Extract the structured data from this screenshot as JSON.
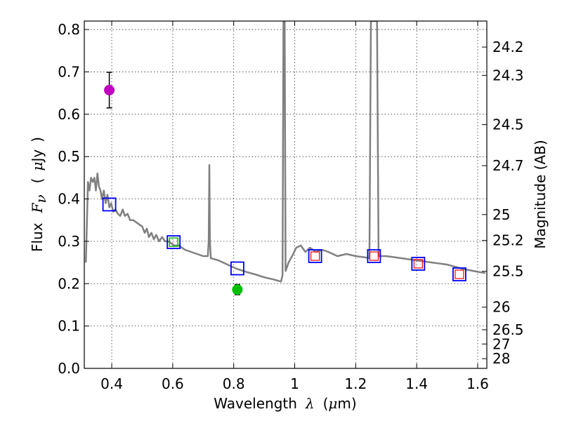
{
  "chart_data": {
    "type": "scatter",
    "xlabel": "Wavelength",
    "xlabel_symbol": "λ",
    "xlabel_unit_open": "(",
    "xlabel_unit_mu": "μ",
    "xlabel_unit_rest": "m)",
    "ylabel": "Flux",
    "ylabel_symbol": "F",
    "ylabel_subscript": "ν",
    "ylabel_unit_open": "(",
    "ylabel_unit_mu": "μ",
    "ylabel_unit_rest": "Jy",
    "ylabel_unit_close": ")",
    "ylabel_right": "Magnitude (AB)",
    "xlim": [
      0.31,
      1.63
    ],
    "ylim": [
      0.0,
      0.82
    ],
    "xticks": [
      0.4,
      0.6,
      0.8,
      1.0,
      1.2,
      1.4,
      1.6
    ],
    "xtick_labels": [
      "0.4",
      "0.6",
      "0.8",
      "1",
      "1.2",
      "1.4",
      "1.6"
    ],
    "yticks": [
      0.0,
      0.1,
      0.2,
      0.3,
      0.4,
      0.5,
      0.6,
      0.7,
      0.8
    ],
    "ytick_labels": [
      "0.0",
      "0.1",
      "0.2",
      "0.3",
      "0.4",
      "0.5",
      "0.6",
      "0.7",
      "0.8"
    ],
    "mag_ticks": [
      24.2,
      24.3,
      24.5,
      24.7,
      25,
      25.2,
      25.5,
      26,
      26.5,
      27,
      28
    ],
    "mag_tick_labels": [
      "24.2",
      "24.3",
      "24.5",
      "24.7",
      "25",
      "25.2",
      "25.5",
      "26",
      "26.5",
      "27",
      "28"
    ],
    "grid": true,
    "model_color": "#808080",
    "model_spectrum": [
      [
        0.315,
        0.25
      ],
      [
        0.318,
        0.33
      ],
      [
        0.322,
        0.44
      ],
      [
        0.327,
        0.42
      ],
      [
        0.332,
        0.45
      ],
      [
        0.338,
        0.44
      ],
      [
        0.343,
        0.45
      ],
      [
        0.348,
        0.42
      ],
      [
        0.353,
        0.46
      ],
      [
        0.358,
        0.43
      ],
      [
        0.363,
        0.42
      ],
      [
        0.368,
        0.4
      ],
      [
        0.374,
        0.42
      ],
      [
        0.38,
        0.39
      ],
      [
        0.386,
        0.41
      ],
      [
        0.392,
        0.38
      ],
      [
        0.398,
        0.39
      ],
      [
        0.405,
        0.37
      ],
      [
        0.412,
        0.375
      ],
      [
        0.42,
        0.365
      ],
      [
        0.428,
        0.36
      ],
      [
        0.436,
        0.375
      ],
      [
        0.443,
        0.36
      ],
      [
        0.452,
        0.365
      ],
      [
        0.46,
        0.35
      ],
      [
        0.47,
        0.35
      ],
      [
        0.48,
        0.345
      ],
      [
        0.49,
        0.34
      ],
      [
        0.5,
        0.335
      ],
      [
        0.508,
        0.32
      ],
      [
        0.515,
        0.33
      ],
      [
        0.522,
        0.31
      ],
      [
        0.53,
        0.32
      ],
      [
        0.538,
        0.305
      ],
      [
        0.546,
        0.315
      ],
      [
        0.555,
        0.3
      ],
      [
        0.565,
        0.31
      ],
      [
        0.575,
        0.3
      ],
      [
        0.585,
        0.3
      ],
      [
        0.595,
        0.295
      ],
      [
        0.605,
        0.29
      ],
      [
        0.62,
        0.29
      ],
      [
        0.64,
        0.28
      ],
      [
        0.66,
        0.275
      ],
      [
        0.68,
        0.27
      ],
      [
        0.7,
        0.265
      ],
      [
        0.715,
        0.265
      ],
      [
        0.718,
        0.3
      ],
      [
        0.72,
        0.48
      ],
      [
        0.722,
        0.3
      ],
      [
        0.725,
        0.26
      ],
      [
        0.75,
        0.255
      ],
      [
        0.78,
        0.245
      ],
      [
        0.81,
        0.235
      ],
      [
        0.84,
        0.228
      ],
      [
        0.87,
        0.222
      ],
      [
        0.9,
        0.215
      ],
      [
        0.93,
        0.21
      ],
      [
        0.955,
        0.205
      ],
      [
        0.96,
        0.22
      ],
      [
        0.963,
        0.82
      ],
      [
        0.967,
        0.82
      ],
      [
        0.97,
        0.23
      ],
      [
        0.98,
        0.25
      ],
      [
        0.995,
        0.27
      ],
      [
        1.005,
        0.285
      ],
      [
        1.02,
        0.29
      ],
      [
        1.035,
        0.275
      ],
      [
        1.05,
        0.285
      ],
      [
        1.07,
        0.275
      ],
      [
        1.09,
        0.28
      ],
      [
        1.11,
        0.275
      ],
      [
        1.14,
        0.265
      ],
      [
        1.17,
        0.27
      ],
      [
        1.2,
        0.265
      ],
      [
        1.23,
        0.262
      ],
      [
        1.245,
        0.26
      ],
      [
        1.25,
        0.82
      ],
      [
        1.262,
        0.82
      ],
      [
        1.27,
        0.82
      ],
      [
        1.275,
        0.265
      ],
      [
        1.3,
        0.265
      ],
      [
        1.35,
        0.26
      ],
      [
        1.4,
        0.255
      ],
      [
        1.45,
        0.25
      ],
      [
        1.5,
        0.245
      ],
      [
        1.55,
        0.235
      ],
      [
        1.6,
        0.228
      ],
      [
        1.625,
        0.225
      ]
    ],
    "model_photometry": [
      {
        "x": 0.392,
        "y": 0.387,
        "inner": "none"
      },
      {
        "x": 0.603,
        "y": 0.298,
        "inner": "green"
      },
      {
        "x": 0.812,
        "y": 0.236,
        "inner": "none"
      },
      {
        "x": 1.067,
        "y": 0.265,
        "inner": "red"
      },
      {
        "x": 1.26,
        "y": 0.265,
        "inner": "red"
      },
      {
        "x": 1.405,
        "y": 0.247,
        "inner": "red"
      },
      {
        "x": 1.54,
        "y": 0.222,
        "inner": "red"
      }
    ],
    "observed": [
      {
        "x": 0.392,
        "y": 0.657,
        "err": 0.042,
        "color": "#bf00bf"
      },
      {
        "x": 0.812,
        "y": 0.186,
        "err": 0.012,
        "color": "#00bf00"
      }
    ],
    "colors": {
      "square": "#0000ff",
      "inner_red": "#ff0000",
      "inner_green": "#00bf00"
    }
  }
}
